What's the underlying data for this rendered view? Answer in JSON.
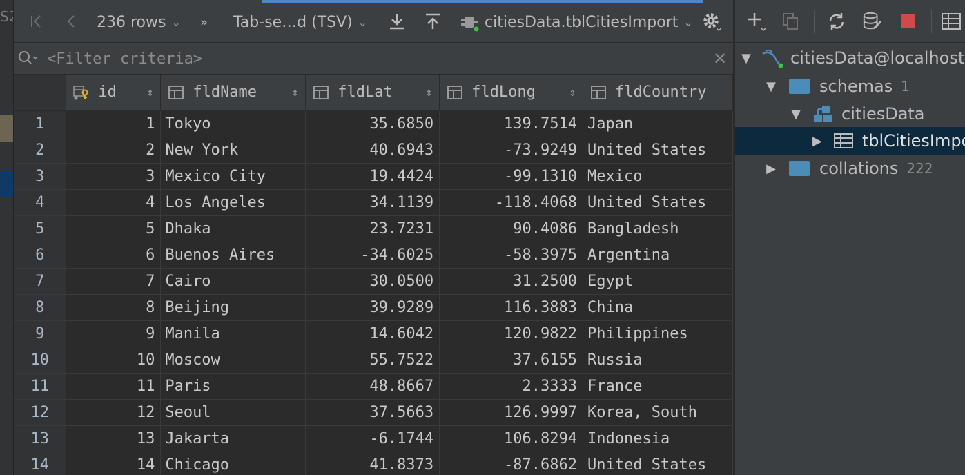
{
  "toolbar": {
    "rows_label": "236 rows",
    "more": "»",
    "format_label": "Tab-se…d (TSV)",
    "table_label": "citiesData.tblCitiesImport"
  },
  "filter": {
    "placeholder": "<Filter criteria>"
  },
  "columns": [
    "id",
    "fldName",
    "fldLat",
    "fldLong",
    "fldCountry"
  ],
  "rows": [
    {
      "n": "1",
      "id": "1",
      "name": "Tokyo",
      "lat": "35.6850",
      "long": "139.7514",
      "country": "Japan"
    },
    {
      "n": "2",
      "id": "2",
      "name": "New York",
      "lat": "40.6943",
      "long": "-73.9249",
      "country": "United States"
    },
    {
      "n": "3",
      "id": "3",
      "name": "Mexico City",
      "lat": "19.4424",
      "long": "-99.1310",
      "country": "Mexico"
    },
    {
      "n": "4",
      "id": "4",
      "name": "Los Angeles",
      "lat": "34.1139",
      "long": "-118.4068",
      "country": "United States"
    },
    {
      "n": "5",
      "id": "5",
      "name": "Dhaka",
      "lat": "23.7231",
      "long": "90.4086",
      "country": "Bangladesh"
    },
    {
      "n": "6",
      "id": "6",
      "name": "Buenos Aires",
      "lat": "-34.6025",
      "long": "-58.3975",
      "country": "Argentina"
    },
    {
      "n": "7",
      "id": "7",
      "name": "Cairo",
      "lat": "30.0500",
      "long": "31.2500",
      "country": "Egypt"
    },
    {
      "n": "8",
      "id": "8",
      "name": "Beijing",
      "lat": "39.9289",
      "long": "116.3883",
      "country": "China"
    },
    {
      "n": "9",
      "id": "9",
      "name": "Manila",
      "lat": "14.6042",
      "long": "120.9822",
      "country": "Philippines"
    },
    {
      "n": "10",
      "id": "10",
      "name": "Moscow",
      "lat": "55.7522",
      "long": "37.6155",
      "country": "Russia"
    },
    {
      "n": "11",
      "id": "11",
      "name": "Paris",
      "lat": "48.8667",
      "long": "2.3333",
      "country": "France"
    },
    {
      "n": "12",
      "id": "12",
      "name": "Seoul",
      "lat": "37.5663",
      "long": "126.9997",
      "country": "Korea, South"
    },
    {
      "n": "13",
      "id": "13",
      "name": "Jakarta",
      "lat": "-6.1744",
      "long": "106.8294",
      "country": "Indonesia"
    },
    {
      "n": "14",
      "id": "14",
      "name": "Chicago",
      "lat": "41.8373",
      "long": "-87.6862",
      "country": "United States"
    }
  ],
  "tree": {
    "root": "citiesData@localhost",
    "schemas": "schemas",
    "schemas_count": "1",
    "schema": "citiesData",
    "table": "tblCitiesImport",
    "collations": "collations",
    "collations_count": "222"
  },
  "gutter_fragment": "S2",
  "colors": {
    "accent": "#4a88c7",
    "selection": "#0d293e",
    "stop": "#d04a4a",
    "folder": "#4b8db8"
  }
}
